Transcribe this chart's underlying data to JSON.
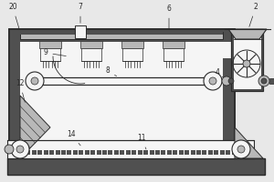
{
  "bg_color": "#e8e8e8",
  "line_color": "#2a2a2a",
  "dark_fill": "#505050",
  "mid_fill": "#888888",
  "light_fill": "#b8b8b8",
  "white": "#f5f5f5",
  "hatch_color": "#666666"
}
